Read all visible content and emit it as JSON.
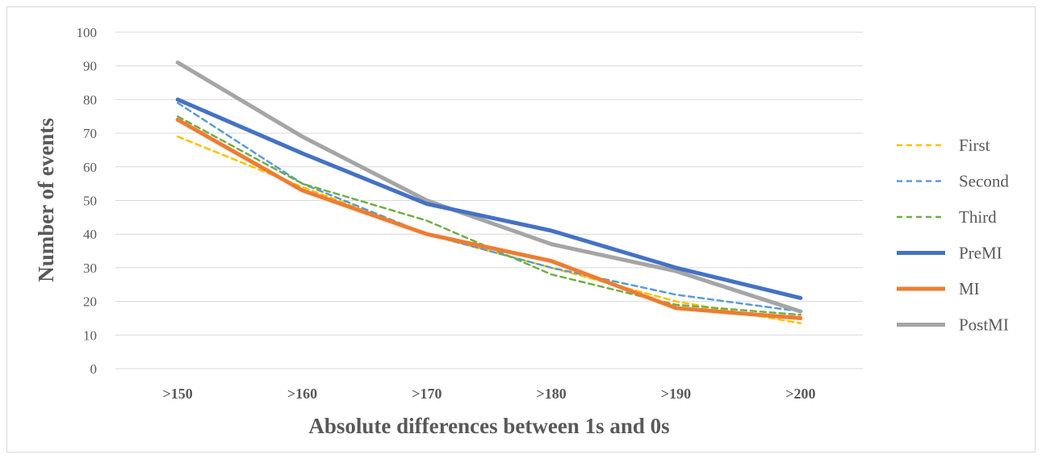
{
  "chart_data": {
    "type": "line",
    "categories": [
      ">150",
      ">160",
      ">170",
      ">180",
      ">190",
      ">200"
    ],
    "xlabel": "Absolute differences between 1s and 0s",
    "ylabel": "Number  of events",
    "ylim": [
      0,
      100
    ],
    "yticks": [
      0,
      10,
      20,
      30,
      40,
      50,
      60,
      70,
      80,
      90,
      100
    ],
    "grid": "horizontal",
    "legend_position": "right",
    "series": [
      {
        "name": "First",
        "values": [
          69,
          54,
          40,
          30,
          20,
          13.5
        ],
        "color": "#FFC000",
        "style": "dashed"
      },
      {
        "name": "Second",
        "values": [
          79,
          55,
          40,
          30,
          22,
          17
        ],
        "color": "#5B9BD5",
        "style": "dashed"
      },
      {
        "name": "Third",
        "values": [
          75,
          55,
          44,
          28,
          19,
          16
        ],
        "color": "#70AD47",
        "style": "dashed"
      },
      {
        "name": "PreMI",
        "values": [
          80,
          64,
          49,
          41,
          30,
          21
        ],
        "color": "#4472C4",
        "style": "solid"
      },
      {
        "name": "MI",
        "values": [
          74,
          53,
          40,
          32,
          18,
          15
        ],
        "color": "#ED7D31",
        "style": "solid"
      },
      {
        "name": "PostMI",
        "values": [
          91,
          69,
          50,
          37,
          29,
          17
        ],
        "color": "#A5A5A5",
        "style": "solid"
      }
    ]
  }
}
